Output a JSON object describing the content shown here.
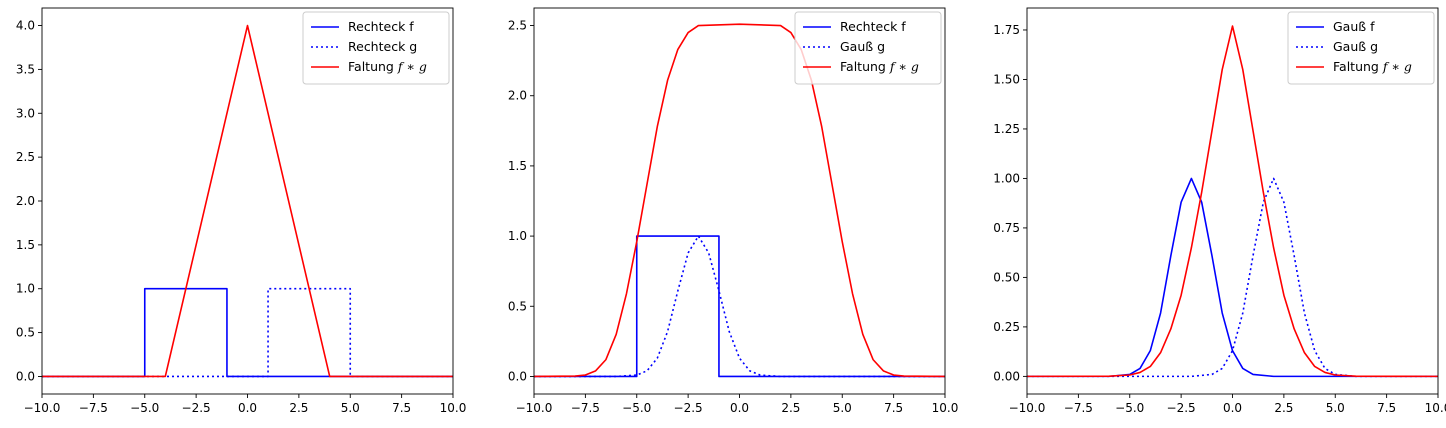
{
  "chart_data": [
    {
      "type": "line",
      "xlim": [
        -10,
        10
      ],
      "ylim": [
        -0.2,
        4.2
      ],
      "xticks": [
        -10.0,
        -7.5,
        -5.0,
        -2.5,
        0.0,
        2.5,
        5.0,
        7.5,
        10.0
      ],
      "xtick_labels": [
        "−10.0",
        "−7.5",
        "−5.0",
        "−2.5",
        "0.0",
        "2.5",
        "5.0",
        "7.5",
        "10.0"
      ],
      "yticks": [
        0.0,
        0.5,
        1.0,
        1.5,
        2.0,
        2.5,
        3.0,
        3.5,
        4.0
      ],
      "ytick_labels": [
        "0.0",
        "0.5",
        "1.0",
        "1.5",
        "2.0",
        "2.5",
        "3.0",
        "3.5",
        "4.0"
      ],
      "legend_position": "top-right",
      "series": [
        {
          "name": "Rechteck f",
          "color": "#0000ff",
          "style": "solid",
          "x": [
            -10,
            -5,
            -5,
            -1,
            -1,
            10
          ],
          "y": [
            0,
            0,
            1,
            1,
            0,
            0
          ]
        },
        {
          "name": "Rechteck g",
          "color": "#0000ff",
          "style": "dotted",
          "x": [
            -10,
            1,
            1,
            5,
            5,
            10
          ],
          "y": [
            0,
            0,
            1,
            1,
            0,
            0
          ]
        },
        {
          "name": "Faltung",
          "name_math": "f ∗ g",
          "color": "#ff0000",
          "style": "solid",
          "x": [
            -10,
            -4,
            0,
            4,
            10
          ],
          "y": [
            0,
            0,
            4,
            0,
            0
          ]
        }
      ]
    },
    {
      "type": "line",
      "xlim": [
        -10,
        10
      ],
      "ylim": [
        -0.125,
        2.625
      ],
      "xticks": [
        -10.0,
        -7.5,
        -5.0,
        -2.5,
        0.0,
        2.5,
        5.0,
        7.5,
        10.0
      ],
      "xtick_labels": [
        "−10.0",
        "−7.5",
        "−5.0",
        "−2.5",
        "0.0",
        "2.5",
        "5.0",
        "7.5",
        "10.0"
      ],
      "yticks": [
        0.0,
        0.5,
        1.0,
        1.5,
        2.0,
        2.5
      ],
      "ytick_labels": [
        "0.0",
        "0.5",
        "1.0",
        "1.5",
        "2.0",
        "2.5"
      ],
      "legend_position": "top-right",
      "series": [
        {
          "name": "Rechteck f",
          "color": "#0000ff",
          "style": "solid",
          "x": [
            -10,
            -5,
            -5,
            -1,
            -1,
            10
          ],
          "y": [
            0,
            0,
            1,
            1,
            0,
            0
          ]
        },
        {
          "name": "Gauß g",
          "color": "#0000ff",
          "style": "dotted",
          "x": [
            -10,
            -6,
            -5,
            -4.5,
            -4,
            -3.5,
            -3,
            -2.5,
            -2,
            -1.5,
            -1,
            -0.5,
            0,
            0.5,
            1,
            2,
            10
          ],
          "y": [
            0,
            0,
            0.01,
            0.04,
            0.13,
            0.32,
            0.61,
            0.88,
            1.0,
            0.88,
            0.61,
            0.32,
            0.13,
            0.04,
            0.01,
            0,
            0
          ]
        },
        {
          "name": "Faltung",
          "name_math": "f ∗ g",
          "color": "#ff0000",
          "style": "solid",
          "x": [
            -10,
            -8,
            -7.5,
            -7,
            -6.5,
            -6,
            -5.5,
            -5,
            -4.5,
            -4,
            -3.5,
            -3,
            -2.5,
            -2,
            0,
            2,
            2.5,
            3,
            3.5,
            4,
            4.5,
            5,
            5.5,
            6,
            6.5,
            7,
            7.5,
            8,
            10
          ],
          "y": [
            0,
            0.003,
            0.01,
            0.04,
            0.12,
            0.3,
            0.59,
            0.96,
            1.37,
            1.78,
            2.11,
            2.33,
            2.45,
            2.5,
            2.51,
            2.5,
            2.45,
            2.33,
            2.11,
            1.78,
            1.37,
            0.96,
            0.59,
            0.3,
            0.12,
            0.04,
            0.01,
            0.003,
            0
          ]
        }
      ]
    },
    {
      "type": "line",
      "xlim": [
        -10,
        10
      ],
      "ylim": [
        -0.089,
        1.861
      ],
      "xticks": [
        -10.0,
        -7.5,
        -5.0,
        -2.5,
        0.0,
        2.5,
        5.0,
        7.5,
        10.0
      ],
      "xtick_labels": [
        "−10.0",
        "−7.5",
        "−5.0",
        "−2.5",
        "0.0",
        "2.5",
        "5.0",
        "7.5",
        "10.0"
      ],
      "yticks": [
        0.0,
        0.25,
        0.5,
        0.75,
        1.0,
        1.25,
        1.5,
        1.75
      ],
      "ytick_labels": [
        "0.00",
        "0.25",
        "0.50",
        "0.75",
        "1.00",
        "1.25",
        "1.50",
        "1.75"
      ],
      "legend_position": "top-right",
      "series": [
        {
          "name": "Gauß f",
          "color": "#0000ff",
          "style": "solid",
          "x": [
            -10,
            -6,
            -5,
            -4.5,
            -4,
            -3.5,
            -3,
            -2.5,
            -2,
            -1.5,
            -1,
            -0.5,
            0,
            0.5,
            1,
            2,
            10
          ],
          "y": [
            0,
            0,
            0.01,
            0.04,
            0.13,
            0.32,
            0.61,
            0.88,
            1.0,
            0.88,
            0.61,
            0.32,
            0.13,
            0.04,
            0.01,
            0,
            0
          ]
        },
        {
          "name": "Gauß g",
          "color": "#0000ff",
          "style": "dotted",
          "x": [
            -10,
            -2,
            -1,
            -0.5,
            0,
            0.5,
            1,
            1.5,
            2,
            2.5,
            3,
            3.5,
            4,
            4.5,
            5,
            6,
            10
          ],
          "y": [
            0,
            0,
            0.01,
            0.04,
            0.13,
            0.32,
            0.61,
            0.88,
            1.0,
            0.88,
            0.61,
            0.32,
            0.13,
            0.04,
            0.01,
            0,
            0
          ]
        },
        {
          "name": "Faltung",
          "name_math": "f ∗ g",
          "color": "#ff0000",
          "style": "solid",
          "x": [
            -10,
            -6,
            -5,
            -4.5,
            -4,
            -3.5,
            -3,
            -2.5,
            -2,
            -1.5,
            -1,
            -0.5,
            0,
            0.5,
            1,
            1.5,
            2,
            2.5,
            3,
            3.5,
            4,
            4.5,
            5,
            6,
            10
          ],
          "y": [
            0,
            0.001,
            0.007,
            0.02,
            0.05,
            0.12,
            0.24,
            0.41,
            0.65,
            0.93,
            1.24,
            1.55,
            1.77,
            1.55,
            1.24,
            0.93,
            0.65,
            0.41,
            0.24,
            0.12,
            0.05,
            0.02,
            0.007,
            0.001,
            0
          ]
        }
      ]
    }
  ]
}
